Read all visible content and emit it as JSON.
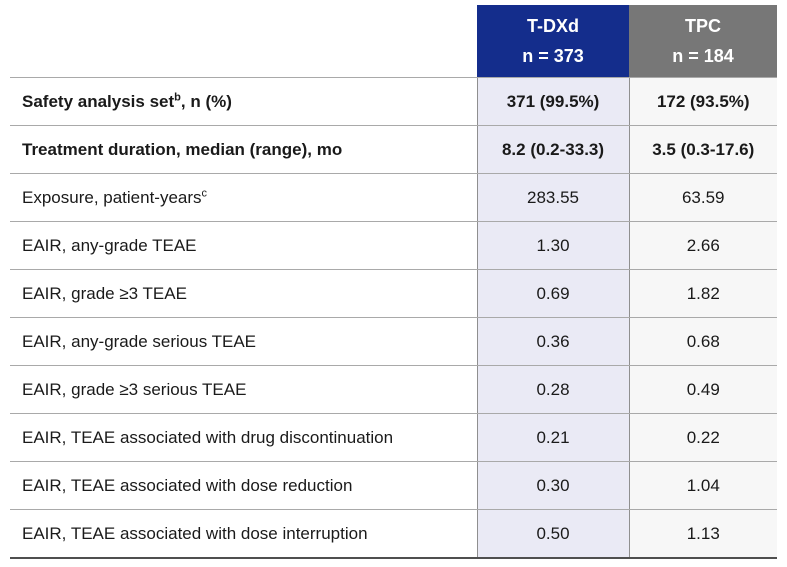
{
  "table": {
    "colors": {
      "tdxd_header_bg": "#142d8c",
      "tpc_header_bg": "#777777",
      "header_text": "#ffffff",
      "tdxd_column_bg": "#eaeaf5",
      "tpc_column_bg": "#f7f7f7",
      "row_border": "#a9a9a9",
      "column_border": "#8f8f8f",
      "bottom_border": "#4f4f4f"
    },
    "columns": [
      {
        "title": "T-DXd",
        "subtitle": "n = 373"
      },
      {
        "title": "TPC",
        "subtitle": "n = 184"
      }
    ],
    "rows": [
      {
        "label_pre": "Safety analysis set",
        "sup": "b",
        "label_post": ", n (%)",
        "tdxd": "371 (99.5%)",
        "tpc": "172 (93.5%)"
      },
      {
        "label_pre": "Treatment duration, median (range), mo",
        "sup": "",
        "label_post": "",
        "tdxd": "8.2 (0.2-33.3)",
        "tpc": "3.5 (0.3-17.6)"
      },
      {
        "label_pre": "Exposure, patient-years",
        "sup": "c",
        "label_post": "",
        "tdxd": "283.55",
        "tpc": "63.59"
      },
      {
        "label_pre": "EAIR, any-grade TEAE",
        "sup": "",
        "label_post": "",
        "tdxd": "1.30",
        "tpc": "2.66"
      },
      {
        "label_pre": "EAIR, grade ≥3 TEAE",
        "sup": "",
        "label_post": "",
        "tdxd": "0.69",
        "tpc": "1.82"
      },
      {
        "label_pre": "EAIR, any-grade serious TEAE",
        "sup": "",
        "label_post": "",
        "tdxd": "0.36",
        "tpc": "0.68"
      },
      {
        "label_pre": "EAIR, grade ≥3 serious TEAE",
        "sup": "",
        "label_post": "",
        "tdxd": "0.28",
        "tpc": "0.49"
      },
      {
        "label_pre": "EAIR, TEAE associated with drug discontinuation",
        "sup": "",
        "label_post": "",
        "tdxd": "0.21",
        "tpc": "0.22"
      },
      {
        "label_pre": "EAIR, TEAE associated with dose reduction",
        "sup": "",
        "label_post": "",
        "tdxd": "0.30",
        "tpc": "1.04"
      },
      {
        "label_pre": "EAIR, TEAE associated with dose interruption",
        "sup": "",
        "label_post": "",
        "tdxd": "0.50",
        "tpc": "1.13"
      }
    ]
  }
}
